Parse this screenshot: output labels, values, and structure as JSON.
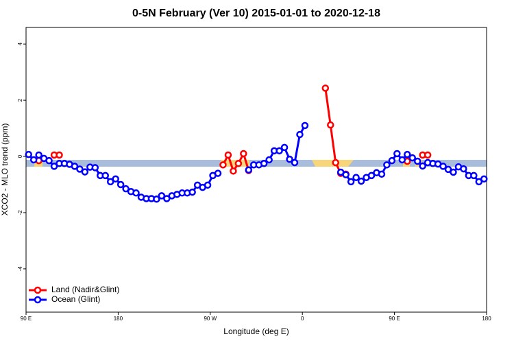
{
  "chart_data": {
    "type": "line",
    "title": "0-5N February (Ver 10)   2015-01-01 to 2020-12-18",
    "x_label": "Longitude (deg E)",
    "y_label": "XCO2 - MLO trend (ppm)",
    "x": [
      92.5,
      97.5,
      102.5,
      107.5,
      112.5,
      117.5,
      122.5,
      127.5,
      132.5,
      137.5,
      142.5,
      147.5,
      152.5,
      157.5,
      162.5,
      167.5,
      172.5,
      177.5,
      182.5,
      187.5,
      192.5,
      197.5,
      202.5,
      207.5,
      212.5,
      217.5,
      222.5,
      227.5,
      232.5,
      237.5,
      242.5,
      247.5,
      252.5,
      257.5,
      262.5,
      267.5,
      272.5,
      277.5,
      282.5,
      287.5,
      292.5,
      297.5,
      302.5,
      307.5,
      312.5,
      317.5,
      322.5,
      327.5,
      332.5,
      337.5,
      342.5,
      347.5,
      352.5,
      357.5,
      362.5,
      367.5,
      372.5,
      377.5,
      382.5,
      387.5,
      392.5,
      397.5,
      402.5,
      407.5,
      412.5,
      417.5,
      422.5,
      427.5,
      432.5,
      437.5,
      442.5,
      447.5,
      452.5,
      457.5,
      462.5,
      467.5,
      472.5,
      477.5,
      482.5,
      487.5,
      492.5,
      497.5,
      502.5,
      507.5,
      512.5,
      517.5,
      522.5,
      527.5,
      532.5,
      537.5
    ],
    "series": [
      {
        "name": "Land (Nadir&Glint)",
        "color": "#ff0000",
        "values": [
          null,
          null,
          -0.15,
          null,
          null,
          0.05,
          0.05,
          null,
          null,
          null,
          null,
          null,
          null,
          null,
          null,
          null,
          null,
          null,
          null,
          null,
          null,
          null,
          null,
          null,
          null,
          null,
          null,
          null,
          null,
          null,
          null,
          null,
          null,
          null,
          null,
          null,
          null,
          null,
          -0.3,
          0.05,
          -0.52,
          -0.25,
          0.1,
          -0.5,
          null,
          null,
          null,
          null,
          null,
          null,
          null,
          null,
          null,
          null,
          null,
          null,
          null,
          null,
          2.43,
          1.12,
          -0.22,
          -0.6,
          -0.63,
          null,
          null,
          null,
          null,
          null,
          null,
          null,
          null,
          null,
          null,
          null,
          -0.17,
          null,
          null,
          0.05,
          0.05,
          null,
          null,
          null,
          null,
          null,
          null,
          null,
          null,
          null,
          null,
          null
        ]
      },
      {
        "name": "Ocean (Glint)",
        "color": "#0000ff",
        "values": [
          0.07,
          -0.12,
          0.05,
          -0.07,
          -0.15,
          -0.35,
          -0.25,
          -0.25,
          -0.28,
          -0.35,
          -0.45,
          -0.55,
          -0.38,
          -0.4,
          -0.68,
          -0.68,
          -0.9,
          -0.8,
          -1.0,
          -1.15,
          -1.25,
          -1.3,
          -1.45,
          -1.5,
          -1.5,
          -1.52,
          -1.4,
          -1.5,
          -1.4,
          -1.35,
          -1.3,
          -1.3,
          -1.27,
          -1.02,
          -1.1,
          -1.02,
          -0.68,
          -0.6,
          null,
          null,
          null,
          null,
          null,
          -0.48,
          -0.3,
          -0.3,
          -0.25,
          -0.12,
          0.2,
          0.2,
          0.32,
          -0.1,
          -0.22,
          0.78,
          1.1,
          null,
          null,
          null,
          null,
          null,
          null,
          -0.56,
          -0.65,
          -0.9,
          -0.75,
          -0.88,
          -0.75,
          -0.68,
          -0.58,
          -0.63,
          -0.3,
          -0.15,
          0.1,
          -0.12,
          0.07,
          -0.05,
          -0.17,
          -0.34,
          -0.22,
          -0.25,
          -0.27,
          -0.35,
          -0.46,
          -0.56,
          -0.37,
          -0.44,
          -0.68,
          -0.68,
          -0.9,
          -0.8
        ]
      }
    ],
    "xlim": [
      90,
      540
    ],
    "xticks": [
      {
        "value": 90,
        "label": "90 E"
      },
      180,
      {
        "value": 270,
        "label": "90 W"
      },
      {
        "value": 360,
        "label": "0"
      },
      {
        "value": 450,
        "label": "90 E"
      },
      {
        "value": 540,
        "label": "180"
      }
    ],
    "ylim": [
      -5.54,
      4.59
    ],
    "yticks": [
      -4,
      -2,
      0,
      2,
      4
    ],
    "legend": "bottom-left"
  }
}
